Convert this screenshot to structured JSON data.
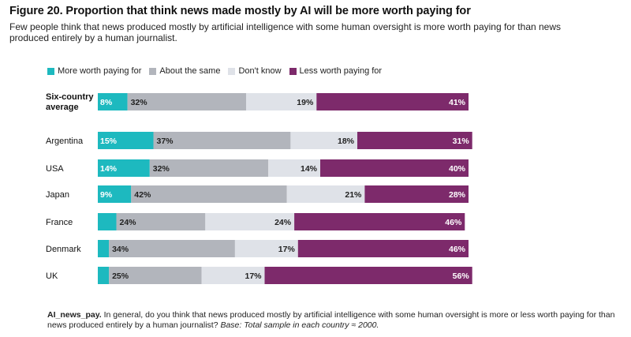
{
  "title": "Figure 20. Proportion that think news made mostly by AI will be more worth paying for",
  "subtitle": "Few people think that news produced mostly by artificial intelligence with some human oversight is more worth paying for than news produced entirely by a human journalist.",
  "footnote": {
    "code": "AI_news_pay.",
    "question": " In general, do you think that news produced mostly by artificial intelligence with some human oversight is more or less worth paying for than news produced entirely by a human journalist? ",
    "base": "Base: Total sample in each country ≈ 2000."
  },
  "chart_data": {
    "type": "bar",
    "orientation": "horizontal",
    "stacked": true,
    "categories": [
      "Six-country average",
      "Argentina",
      "USA",
      "Japan",
      "France",
      "Denmark",
      "UK"
    ],
    "series": [
      {
        "name": "More worth paying for",
        "color": "#1db9bf",
        "values": [
          8,
          15,
          14,
          9,
          5,
          3,
          3
        ],
        "labels": [
          "8%",
          "15%",
          "14%",
          "9%",
          "",
          "",
          ""
        ]
      },
      {
        "name": "About the same",
        "color": "#b2b5bc",
        "values": [
          32,
          37,
          32,
          42,
          24,
          34,
          25
        ],
        "labels": [
          "32%",
          "37%",
          "32%",
          "42%",
          "24%",
          "34%",
          "25%"
        ]
      },
      {
        "name": "Don't know",
        "color": "#dfe2e8",
        "values": [
          19,
          18,
          14,
          21,
          24,
          17,
          17
        ],
        "labels": [
          "19%",
          "18%",
          "14%",
          "21%",
          "24%",
          "17%",
          "17%"
        ]
      },
      {
        "name": "Less worth paying for",
        "color": "#7d2a6b",
        "values": [
          41,
          31,
          40,
          28,
          46,
          46,
          56
        ],
        "labels": [
          "41%",
          "31%",
          "40%",
          "28%",
          "46%",
          "46%",
          "56%"
        ]
      }
    ],
    "xlim": [
      0,
      100
    ],
    "legend": "top-left",
    "grid": false
  }
}
